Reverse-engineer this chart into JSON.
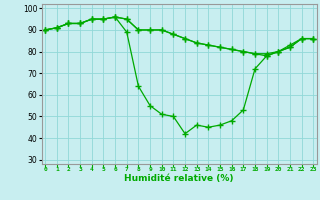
{
  "x": [
    0,
    1,
    2,
    3,
    4,
    5,
    6,
    7,
    8,
    9,
    10,
    11,
    12,
    13,
    14,
    15,
    16,
    17,
    18,
    19,
    20,
    21,
    22,
    23
  ],
  "line1": [
    90,
    91,
    93,
    93,
    95,
    95,
    96,
    89,
    64,
    55,
    51,
    50,
    42,
    46,
    45,
    46,
    48,
    53,
    72,
    78,
    80,
    83,
    86,
    86
  ],
  "line2": [
    90,
    91,
    93,
    93,
    95,
    95,
    96,
    95,
    90,
    90,
    90,
    88,
    86,
    84,
    83,
    82,
    81,
    80,
    79,
    79,
    80,
    82,
    86,
    86
  ],
  "line3": [
    90,
    91,
    93,
    93,
    95,
    95,
    96,
    95,
    90,
    90,
    90,
    88,
    86,
    84,
    83,
    82,
    81,
    80,
    79,
    78,
    80,
    82,
    86,
    86
  ],
  "line_color": "#00aa00",
  "bg_color": "#c8eef0",
  "grid_color": "#90d8d8",
  "xlabel": "Humidité relative (%)",
  "ylim": [
    28,
    102
  ],
  "xlim": [
    -0.3,
    23.3
  ],
  "yticks": [
    30,
    40,
    50,
    60,
    70,
    80,
    90,
    100
  ],
  "xticks": [
    0,
    1,
    2,
    3,
    4,
    5,
    6,
    7,
    8,
    9,
    10,
    11,
    12,
    13,
    14,
    15,
    16,
    17,
    18,
    19,
    20,
    21,
    22,
    23
  ]
}
